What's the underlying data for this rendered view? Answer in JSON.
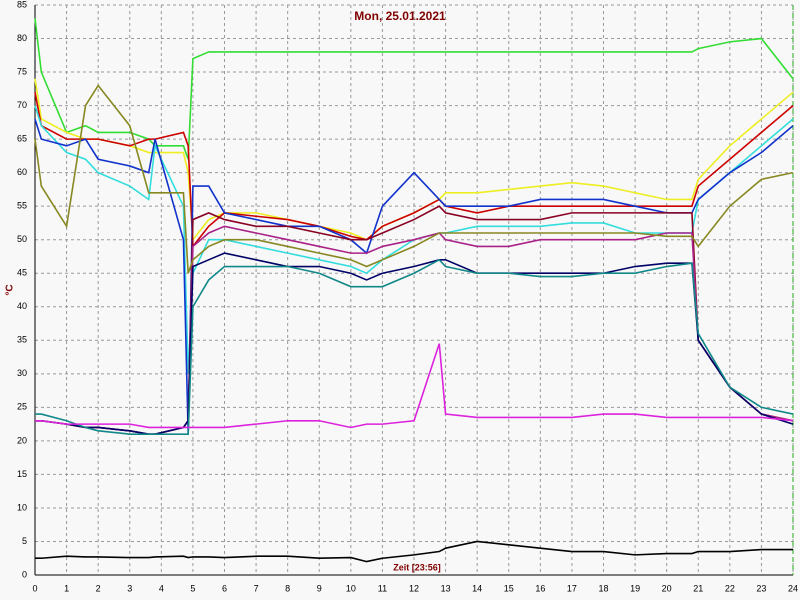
{
  "chart_data": {
    "type": "line",
    "title": "Mon, 25.01.2021",
    "y_label": "°C",
    "annotation": "Zeit [23:56]",
    "grid": true,
    "x": [
      0,
      0.2,
      1,
      1.6,
      2,
      3,
      3.6,
      3.8,
      4.7,
      4.85,
      5,
      5.5,
      6,
      7,
      8,
      9,
      10,
      10.5,
      11,
      12,
      12.8,
      13,
      14,
      15,
      16,
      17,
      18,
      19,
      20,
      20.8,
      21,
      22,
      23,
      24
    ],
    "xlim": [
      0,
      24
    ],
    "xticks": [
      0,
      1,
      2,
      3,
      4,
      5,
      6,
      7,
      8,
      9,
      10,
      11,
      12,
      13,
      14,
      15,
      16,
      17,
      18,
      19,
      20,
      21,
      22,
      23,
      24
    ],
    "ylim": [
      0,
      85
    ],
    "yticks": [
      0,
      5,
      10,
      15,
      20,
      25,
      30,
      35,
      40,
      45,
      50,
      55,
      60,
      65,
      70,
      75,
      80,
      85
    ],
    "series": [
      {
        "color": "#33dd33",
        "values": [
          83,
          75,
          66,
          67,
          66,
          66,
          65,
          64,
          64,
          62,
          77,
          78,
          78,
          78,
          78,
          78,
          78,
          78,
          78,
          78,
          78,
          78,
          78,
          78,
          78,
          78,
          78,
          78,
          78,
          78,
          78.5,
          79.5,
          80,
          74
        ]
      },
      {
        "color": "#eeee22",
        "values": [
          74,
          68,
          66,
          65,
          65,
          64,
          63,
          63,
          63,
          60,
          50,
          53,
          54,
          54,
          53,
          52,
          51,
          50,
          52,
          54,
          56,
          57,
          57,
          57.5,
          58,
          58.5,
          58,
          57,
          56,
          56,
          59,
          64,
          68,
          72
        ]
      },
      {
        "color": "#cc0000",
        "values": [
          72,
          67,
          65,
          65,
          65,
          64,
          65,
          65,
          66,
          64,
          49,
          52,
          54,
          53.5,
          53,
          52,
          50.5,
          50,
          52,
          54,
          56,
          55,
          54,
          55,
          55,
          55,
          55,
          55,
          55,
          55,
          58,
          62,
          66,
          70
        ]
      },
      {
        "color": "#33dddd",
        "values": [
          70,
          67,
          63,
          62,
          60,
          58,
          56,
          64,
          55,
          30,
          45,
          50,
          50,
          49,
          48,
          47,
          46,
          45,
          47,
          50,
          51,
          51,
          52,
          52,
          52,
          52.5,
          52.5,
          51,
          51,
          51,
          56,
          60,
          64,
          68
        ]
      },
      {
        "color": "#1133cc",
        "values": [
          68,
          65,
          64,
          65,
          62,
          61,
          60,
          65,
          50,
          21,
          58,
          58,
          54,
          53,
          52,
          52,
          50,
          48,
          55,
          60,
          56,
          55,
          55,
          55,
          56,
          56,
          56,
          55,
          54,
          54,
          56,
          60,
          63,
          67
        ]
      },
      {
        "color": "#880022",
        "values": [
          23,
          23,
          22.5,
          22,
          22,
          21.5,
          21,
          21,
          22,
          23,
          53,
          54,
          53,
          52,
          52,
          51,
          50,
          50,
          51,
          53,
          55,
          54,
          53,
          53,
          53,
          54,
          54,
          54,
          54,
          54,
          35,
          28,
          24,
          23
        ]
      },
      {
        "color": "#aa2288",
        "values": [
          23,
          23,
          22.5,
          22,
          22,
          21.5,
          21,
          21,
          22,
          23,
          49,
          51,
          52,
          51,
          50,
          49,
          48,
          48,
          49,
          50,
          51,
          50,
          49,
          49,
          50,
          50,
          50,
          50,
          51,
          51,
          35,
          28,
          24,
          23
        ]
      },
      {
        "color": "#888822",
        "values": [
          65,
          58,
          52,
          70,
          73,
          67,
          57,
          57,
          57,
          45,
          47,
          49,
          50,
          50,
          49,
          48,
          47,
          46,
          47,
          49,
          51,
          51,
          51,
          51,
          51,
          51,
          51,
          51,
          50.5,
          50.5,
          49,
          55,
          59,
          60
        ]
      },
      {
        "color": "#000066",
        "values": [
          23,
          23,
          22.5,
          22,
          22,
          21.5,
          21,
          21,
          22,
          23,
          46,
          47,
          48,
          47,
          46,
          46,
          45,
          44,
          45,
          46,
          47,
          47,
          45,
          45,
          45,
          45,
          45,
          46,
          46.5,
          46.5,
          35,
          28,
          24,
          22.5
        ]
      },
      {
        "color": "#118888",
        "values": [
          24,
          24,
          23,
          22,
          21.5,
          21,
          21,
          21,
          21,
          21,
          40,
          44,
          46,
          46,
          46,
          45,
          43,
          43,
          43,
          45,
          47,
          46,
          45,
          45,
          44.5,
          44.5,
          45,
          45,
          46,
          46.5,
          36,
          28,
          25,
          24
        ]
      },
      {
        "color": "#dd22dd",
        "values": [
          23,
          23,
          22.5,
          22.5,
          22.5,
          22.5,
          22,
          22,
          22,
          22,
          22,
          22,
          22,
          22.5,
          23,
          23,
          22,
          22.5,
          22.5,
          23,
          34.5,
          24,
          23.5,
          23.5,
          23.5,
          23.5,
          24,
          24,
          23.5,
          23.5,
          23.5,
          23.5,
          23.5,
          23
        ]
      },
      {
        "color": "#000000",
        "values": [
          2.5,
          2.5,
          2.8,
          2.7,
          2.7,
          2.6,
          2.6,
          2.7,
          2.8,
          2.6,
          2.7,
          2.7,
          2.6,
          2.8,
          2.8,
          2.5,
          2.6,
          2,
          2.5,
          3,
          3.5,
          4,
          5,
          4.5,
          4,
          3.5,
          3.5,
          3,
          3.2,
          3.2,
          3.5,
          3.5,
          3.8,
          3.8
        ]
      }
    ]
  }
}
